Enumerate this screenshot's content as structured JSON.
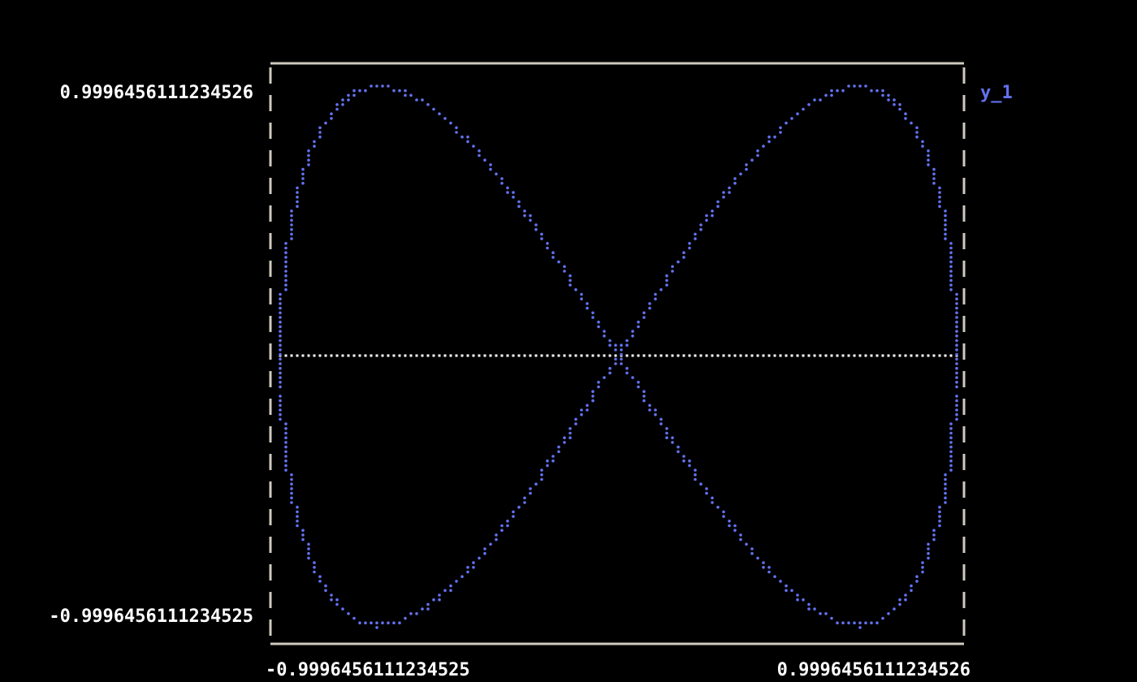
{
  "chart_data": {
    "type": "line",
    "title": "",
    "xlabel": "",
    "ylabel": "",
    "xlim": [
      -0.9996456111234525,
      0.9996456111234526
    ],
    "ylim": [
      -0.9996456111234525,
      0.9996456111234526
    ],
    "x_tick_labels": [
      "-0.9996456111234525",
      "0.9996456111234526"
    ],
    "y_tick_labels": [
      "0.9996456111234526",
      "-0.9996456111234525"
    ],
    "grid": false,
    "legend_placement": "right-top",
    "origin_line": true,
    "background": "#000000",
    "frame_color": "#cfcac0",
    "series": [
      {
        "name": "y_1",
        "color": "#6272f0",
        "x": [
          0,
          0.098,
          0.195,
          0.29,
          0.383,
          0.471,
          0.556,
          0.634,
          0.707,
          0.773,
          0.831,
          0.882,
          0.924,
          0.957,
          0.981,
          0.995,
          1,
          0.995,
          0.981,
          0.957,
          0.924,
          0.882,
          0.831,
          0.773,
          0.707,
          0.634,
          0.556,
          0.471,
          0.383,
          0.29,
          0.195,
          0.098,
          0,
          -0.098,
          -0.195,
          -0.29,
          -0.383,
          -0.471,
          -0.556,
          -0.634,
          -0.707,
          -0.773,
          -0.831,
          -0.882,
          -0.924,
          -0.957,
          -0.981,
          -0.995,
          -1,
          -0.995,
          -0.981,
          -0.957,
          -0.924,
          -0.882,
          -0.831,
          -0.773,
          -0.707,
          -0.634,
          -0.556,
          -0.471,
          -0.383,
          -0.29,
          -0.195,
          -0.098,
          0
        ],
        "y": [
          0,
          0.195,
          0.383,
          0.556,
          0.707,
          0.831,
          0.924,
          0.981,
          1,
          0.981,
          0.924,
          0.831,
          0.707,
          0.556,
          0.383,
          0.195,
          0,
          -0.195,
          -0.383,
          -0.556,
          -0.707,
          -0.831,
          -0.924,
          -0.981,
          -1,
          -0.981,
          -0.924,
          -0.831,
          -0.707,
          -0.556,
          -0.383,
          -0.195,
          0,
          0.195,
          0.383,
          0.556,
          0.707,
          0.831,
          0.924,
          0.981,
          1,
          0.981,
          0.924,
          0.831,
          0.707,
          0.556,
          0.383,
          0.195,
          0,
          -0.195,
          -0.383,
          -0.556,
          -0.707,
          -0.831,
          -0.924,
          -0.981,
          -1,
          -0.981,
          -0.924,
          -0.831,
          -0.707,
          -0.556,
          -0.383,
          -0.195,
          0
        ]
      }
    ]
  }
}
